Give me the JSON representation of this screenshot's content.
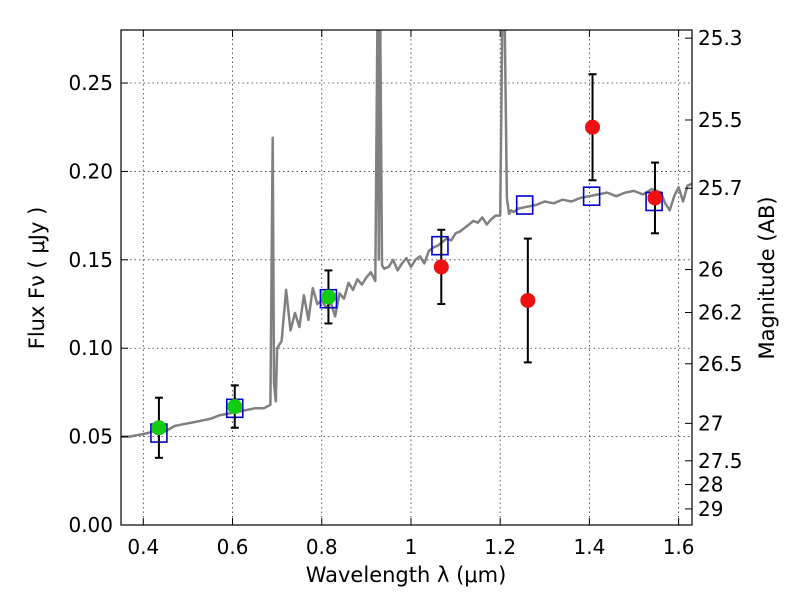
{
  "chart_data": {
    "type": "scatter",
    "xlabel": "Wavelength  λ (μm)",
    "ylabel": "Flux  Fν  ( μJy )",
    "y2label": "Magnitude (AB)",
    "xlim": [
      0.35,
      1.63
    ],
    "ylim": [
      0.0,
      0.28
    ],
    "grid": true,
    "x_ticks": [
      0.4,
      0.6,
      0.8,
      1.0,
      1.2,
      1.4,
      1.6
    ],
    "x_tick_labels": [
      "0.4",
      "0.6",
      "0.8",
      "1",
      "1.2",
      "1.4",
      "1.6"
    ],
    "y_ticks": [
      0.0,
      0.05,
      0.1,
      0.15,
      0.2,
      0.25
    ],
    "y_tick_labels": [
      "0.00",
      "0.05",
      "0.10",
      "0.15",
      "0.20",
      "0.25"
    ],
    "mag_ticks": [
      {
        "label": "25.3",
        "flux": 0.2754
      },
      {
        "label": "25.5",
        "flux": 0.2291
      },
      {
        "label": "25.7",
        "flux": 0.1905
      },
      {
        "label": "26",
        "flux": 0.1445
      },
      {
        "label": "26.2",
        "flux": 0.1202
      },
      {
        "label": "26.5",
        "flux": 0.0912
      },
      {
        "label": "27",
        "flux": 0.0575
      },
      {
        "label": "27.5",
        "flux": 0.0363
      },
      {
        "label": "28",
        "flux": 0.0229
      },
      {
        "label": "29",
        "flux": 0.0091
      }
    ],
    "series": [
      {
        "kind": "line",
        "color": "#808080",
        "x": [
          0.35,
          0.37,
          0.39,
          0.41,
          0.42,
          0.43,
          0.44,
          0.45,
          0.47,
          0.49,
          0.51,
          0.53,
          0.55,
          0.57,
          0.59,
          0.61,
          0.63,
          0.65,
          0.67,
          0.685,
          0.69,
          0.693,
          0.697,
          0.7,
          0.71,
          0.72,
          0.73,
          0.74,
          0.75,
          0.76,
          0.77,
          0.78,
          0.79,
          0.8,
          0.81,
          0.82,
          0.83,
          0.84,
          0.85,
          0.86,
          0.87,
          0.88,
          0.89,
          0.9,
          0.91,
          0.92,
          0.925,
          0.928,
          0.931,
          0.935,
          0.94,
          0.95,
          0.96,
          0.97,
          0.98,
          0.99,
          1.0,
          1.01,
          1.02,
          1.03,
          1.04,
          1.05,
          1.06,
          1.07,
          1.08,
          1.09,
          1.1,
          1.11,
          1.12,
          1.13,
          1.14,
          1.15,
          1.16,
          1.17,
          1.18,
          1.19,
          1.2,
          1.205,
          1.21,
          1.215,
          1.22,
          1.225,
          1.23,
          1.24,
          1.26,
          1.28,
          1.3,
          1.32,
          1.34,
          1.36,
          1.38,
          1.4,
          1.42,
          1.44,
          1.46,
          1.48,
          1.5,
          1.52,
          1.54,
          1.56,
          1.57,
          1.58,
          1.59,
          1.6,
          1.61,
          1.62,
          1.63
        ],
        "y": [
          0.05,
          0.05,
          0.051,
          0.052,
          0.053,
          0.052,
          0.054,
          0.053,
          0.056,
          0.057,
          0.058,
          0.059,
          0.06,
          0.062,
          0.063,
          0.064,
          0.065,
          0.066,
          0.066,
          0.068,
          0.219,
          0.08,
          0.07,
          0.1,
          0.104,
          0.133,
          0.11,
          0.12,
          0.112,
          0.13,
          0.116,
          0.134,
          0.125,
          0.127,
          0.123,
          0.126,
          0.118,
          0.131,
          0.128,
          0.137,
          0.133,
          0.139,
          0.136,
          0.14,
          0.143,
          0.138,
          0.29,
          0.15,
          0.29,
          0.147,
          0.145,
          0.146,
          0.15,
          0.144,
          0.148,
          0.151,
          0.146,
          0.15,
          0.152,
          0.148,
          0.155,
          0.157,
          0.158,
          0.16,
          0.162,
          0.161,
          0.165,
          0.166,
          0.168,
          0.17,
          0.172,
          0.171,
          0.174,
          0.17,
          0.173,
          0.175,
          0.175,
          0.29,
          0.29,
          0.185,
          0.176,
          0.178,
          0.177,
          0.179,
          0.18,
          0.181,
          0.183,
          0.182,
          0.184,
          0.183,
          0.185,
          0.186,
          0.187,
          0.188,
          0.186,
          0.188,
          0.189,
          0.187,
          0.19,
          0.188,
          0.182,
          0.178,
          0.186,
          0.191,
          0.183,
          0.192,
          0.193
        ]
      },
      {
        "kind": "markers",
        "marker": "open-square",
        "color": "#0000cc",
        "x": [
          0.435,
          0.605,
          0.815,
          1.065,
          1.255,
          1.405,
          1.545
        ],
        "y": [
          0.052,
          0.066,
          0.128,
          0.158,
          0.181,
          0.186,
          0.183
        ]
      },
      {
        "kind": "markers",
        "marker": "filled-circle",
        "color": "#11cc11",
        "x": [
          0.435,
          0.605,
          0.815
        ],
        "y": [
          0.055,
          0.067,
          0.129
        ],
        "yerr": [
          0.017,
          0.012,
          0.015
        ]
      },
      {
        "kind": "markers",
        "marker": "filled-circle",
        "color": "#ee1111",
        "x": [
          1.068,
          1.262,
          1.407,
          1.547
        ],
        "y": [
          0.146,
          0.127,
          0.225,
          0.185
        ],
        "yerr": [
          0.021,
          0.035,
          0.03,
          0.02
        ]
      }
    ]
  }
}
